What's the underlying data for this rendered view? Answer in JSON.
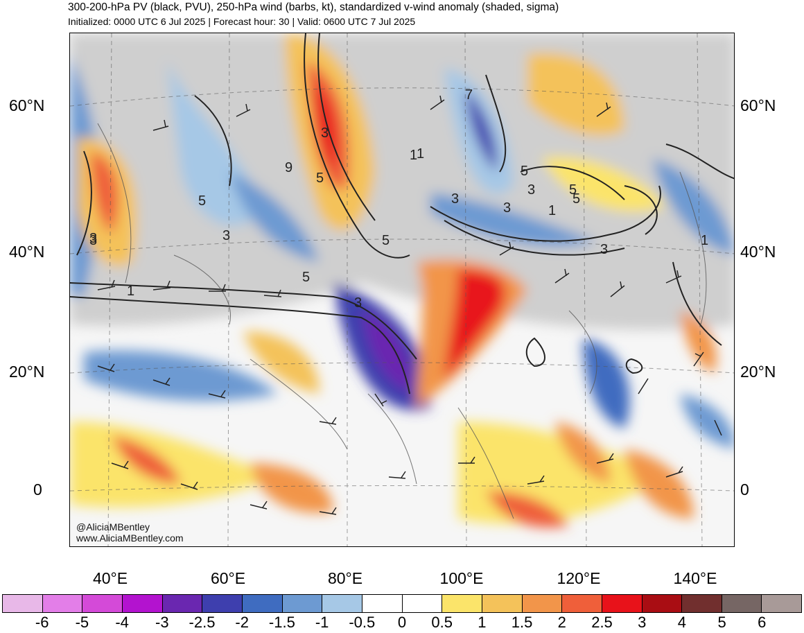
{
  "header": {
    "title": "300-200-hPa PV (black, PVU), 250-hPa wind (barbs, kt), standardized v-wind anomaly (shaded, sigma)",
    "subtitle": "Initialized: 0000 UTC 6 Jul 2025 | Forecast hour: 30 | Valid: 0600 UTC 7 Jul 2025"
  },
  "map": {
    "lat_labels": [
      "60°N",
      "40°N",
      "20°N",
      "0"
    ],
    "lon_labels": [
      "40°E",
      "60°E",
      "80°E",
      "100°E",
      "120°E",
      "140°E"
    ],
    "contour_labels": [
      "3",
      "5",
      "9",
      "1",
      "7",
      "5",
      "3",
      "3",
      "1",
      "5",
      "3",
      "5",
      "3",
      "5",
      "3",
      "1",
      "3",
      "1",
      "5",
      "3",
      "3",
      "5",
      "1"
    ],
    "credit_handle": "@AliciaMBentley",
    "credit_site": "www.AliciaMBentley.com"
  },
  "colorbar": {
    "labels": [
      "-6",
      "-5",
      "-4",
      "-3",
      "-2.5",
      "-2",
      "-1.5",
      "-1",
      "-0.5",
      "0",
      "0.5",
      "1",
      "1.5",
      "2",
      "2.5",
      "3",
      "4",
      "5",
      "6"
    ],
    "colors": [
      "#e8b8e8",
      "#e37ee8",
      "#d44ad8",
      "#b313cf",
      "#6a27b0",
      "#3e3fae",
      "#3f6cc0",
      "#6d9ad2",
      "#a6c8e6",
      "#ffffff",
      "#ffffff",
      "#fbe46a",
      "#f4c25a",
      "#f2954a",
      "#ef5f3a",
      "#e8121a",
      "#a90d13",
      "#712f2e",
      "#766664",
      "#a89a98"
    ]
  }
}
